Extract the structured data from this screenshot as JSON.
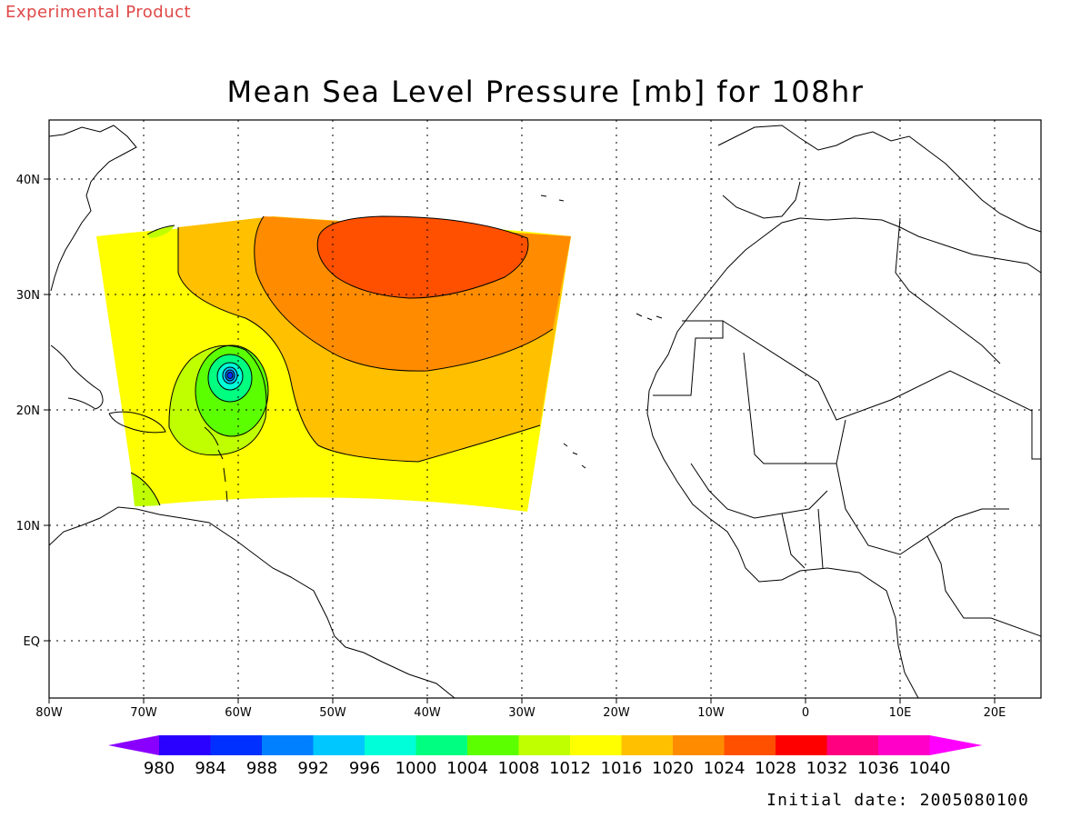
{
  "header": {
    "experimental_label": "Experimental Product",
    "title": "Mean Sea Level Pressure [mb] for 108hr",
    "initial_date": "Initial date: 2005080100"
  },
  "map": {
    "lon_range": [
      -80,
      25
    ],
    "lat_range": [
      -5.5,
      44.5
    ],
    "lon_ticks": [
      {
        "value": -80,
        "label": "80W"
      },
      {
        "value": -70,
        "label": "70W"
      },
      {
        "value": -60,
        "label": "60W"
      },
      {
        "value": -50,
        "label": "50W"
      },
      {
        "value": -40,
        "label": "40W"
      },
      {
        "value": -30,
        "label": "30W"
      },
      {
        "value": -20,
        "label": "20W"
      },
      {
        "value": -10,
        "label": "10W"
      },
      {
        "value": 0,
        "label": "0"
      },
      {
        "value": 10,
        "label": "10E"
      },
      {
        "value": 20,
        "label": "20E"
      }
    ],
    "lat_ticks": [
      {
        "value": 40,
        "label": "40N"
      },
      {
        "value": 30,
        "label": "30N"
      },
      {
        "value": 20,
        "label": "20N"
      },
      {
        "value": 10,
        "label": "10N"
      },
      {
        "value": 0,
        "label": "EQ"
      }
    ],
    "grid": true,
    "low_center": {
      "lon": -61,
      "lat": 23
    }
  },
  "colorbar": {
    "levels": [
      "980",
      "984",
      "988",
      "992",
      "996",
      "1000",
      "1004",
      "1008",
      "1012",
      "1016",
      "1020",
      "1024",
      "1028",
      "1032",
      "1036",
      "1040"
    ],
    "colors": [
      "#8a00ff",
      "#2a00ff",
      "#0030ff",
      "#0080ff",
      "#00c8ff",
      "#00ffd8",
      "#00ff80",
      "#5cff00",
      "#c0ff00",
      "#ffff00",
      "#ffc000",
      "#ff8c00",
      "#ff5000",
      "#ff0000",
      "#ff0080",
      "#ff00c8",
      "#ff00ff"
    ]
  }
}
